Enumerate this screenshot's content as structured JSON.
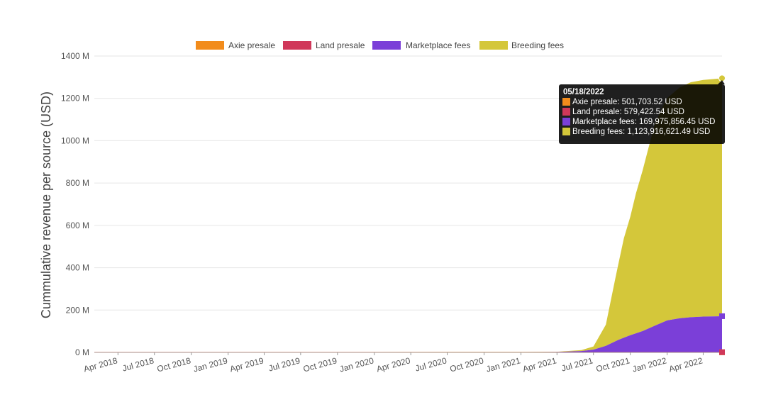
{
  "chart_data": {
    "type": "area",
    "stacked": true,
    "title": "",
    "xlabel": "",
    "ylabel": "Cummulative revenue per source (USD)",
    "ylim": [
      0,
      1400000000
    ],
    "y_ticks": [
      {
        "value": 0,
        "label": "0 M"
      },
      {
        "value": 200000000,
        "label": "200 M"
      },
      {
        "value": 400000000,
        "label": "400 M"
      },
      {
        "value": 600000000,
        "label": "600 M"
      },
      {
        "value": 800000000,
        "label": "800 M"
      },
      {
        "value": 1000000000,
        "label": "1000 M"
      },
      {
        "value": 1200000000,
        "label": "1200 M"
      },
      {
        "value": 1400000000,
        "label": "1400 M"
      }
    ],
    "xlim": [
      "2018-02-01",
      "2022-05-18"
    ],
    "x_ticks": [
      {
        "date": "2018-04-01",
        "label": "Apr 2018"
      },
      {
        "date": "2018-07-01",
        "label": "Jul 2018"
      },
      {
        "date": "2018-10-01",
        "label": "Oct 2018"
      },
      {
        "date": "2019-01-01",
        "label": "Jan 2019"
      },
      {
        "date": "2019-04-01",
        "label": "Apr 2019"
      },
      {
        "date": "2019-07-01",
        "label": "Jul 2019"
      },
      {
        "date": "2019-10-01",
        "label": "Oct 2019"
      },
      {
        "date": "2020-01-01",
        "label": "Jan 2020"
      },
      {
        "date": "2020-04-01",
        "label": "Apr 2020"
      },
      {
        "date": "2020-07-01",
        "label": "Jul 2020"
      },
      {
        "date": "2020-10-01",
        "label": "Oct 2020"
      },
      {
        "date": "2021-01-01",
        "label": "Jan 2021"
      },
      {
        "date": "2021-04-01",
        "label": "Apr 2021"
      },
      {
        "date": "2021-07-01",
        "label": "Jul 2021"
      },
      {
        "date": "2021-10-01",
        "label": "Oct 2021"
      },
      {
        "date": "2022-01-01",
        "label": "Jan 2022"
      },
      {
        "date": "2022-04-01",
        "label": "Apr 2022"
      }
    ],
    "grid": true,
    "legend_position": "top",
    "series": [
      {
        "name": "Axie presale",
        "color": "#f28c1c",
        "points": [
          {
            "x": "2018-02-01",
            "y": 501704
          },
          {
            "x": "2022-05-18",
            "y": 501704
          }
        ]
      },
      {
        "name": "Land presale",
        "color": "#d0385a",
        "points": [
          {
            "x": "2018-02-01",
            "y": 579423
          },
          {
            "x": "2022-05-18",
            "y": 579423
          }
        ]
      },
      {
        "name": "Marketplace fees",
        "color": "#7b3fd8",
        "points": [
          {
            "x": "2018-02-01",
            "y": 0
          },
          {
            "x": "2021-01-01",
            "y": 200000
          },
          {
            "x": "2021-04-01",
            "y": 1000000
          },
          {
            "x": "2021-06-01",
            "y": 5000000
          },
          {
            "x": "2021-07-01",
            "y": 12000000
          },
          {
            "x": "2021-08-01",
            "y": 30000000
          },
          {
            "x": "2021-09-01",
            "y": 58000000
          },
          {
            "x": "2021-10-01",
            "y": 80000000
          },
          {
            "x": "2021-11-01",
            "y": 100000000
          },
          {
            "x": "2021-12-01",
            "y": 125000000
          },
          {
            "x": "2022-01-01",
            "y": 150000000
          },
          {
            "x": "2022-02-01",
            "y": 160000000
          },
          {
            "x": "2022-03-01",
            "y": 165000000
          },
          {
            "x": "2022-04-01",
            "y": 168000000
          },
          {
            "x": "2022-05-18",
            "y": 169975856
          }
        ]
      },
      {
        "name": "Breeding fees",
        "color": "#d4c73a",
        "points": [
          {
            "x": "2018-02-01",
            "y": 0
          },
          {
            "x": "2021-04-01",
            "y": 1000000
          },
          {
            "x": "2021-06-01",
            "y": 5000000
          },
          {
            "x": "2021-07-01",
            "y": 15000000
          },
          {
            "x": "2021-08-01",
            "y": 100000000
          },
          {
            "x": "2021-08-25",
            "y": 300000000
          },
          {
            "x": "2021-09-15",
            "y": 470000000
          },
          {
            "x": "2021-10-01",
            "y": 560000000
          },
          {
            "x": "2021-10-15",
            "y": 660000000
          },
          {
            "x": "2021-11-01",
            "y": 760000000
          },
          {
            "x": "2021-11-15",
            "y": 850000000
          },
          {
            "x": "2021-12-01",
            "y": 950000000
          },
          {
            "x": "2021-12-15",
            "y": 1000000000
          },
          {
            "x": "2022-01-01",
            "y": 1050000000
          },
          {
            "x": "2022-02-01",
            "y": 1090000000
          },
          {
            "x": "2022-03-01",
            "y": 1110000000
          },
          {
            "x": "2022-04-01",
            "y": 1118000000
          },
          {
            "x": "2022-05-18",
            "y": 1123916621
          }
        ]
      }
    ],
    "tooltip": {
      "date": "05/18/2022",
      "lines": [
        {
          "label": "Axie presale: 501,703.52 USD",
          "color": "#f28c1c"
        },
        {
          "label": "Land presale: 579,422.54 USD",
          "color": "#d0385a"
        },
        {
          "label": "Marketplace fees: 169,975,856.45 USD",
          "color": "#7b3fd8"
        },
        {
          "label": "Breeding fees: 1,123,916,621.49 USD",
          "color": "#d4c73a"
        }
      ]
    }
  }
}
